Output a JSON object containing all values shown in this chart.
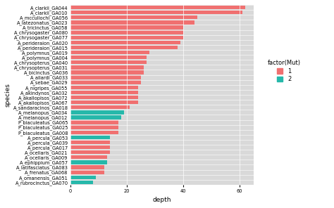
{
  "species": [
    "A_clarkii_GA044",
    "A_clarkii_GA010",
    "A_mccullochi_GA056",
    "A_latezonatus_GA023",
    "A_tricinctus_GA058",
    "A_chrysogaster_GA080",
    "A_chrysogaster_GA077",
    "A_perideraion_GA020",
    "A_perideraion_GA015",
    "A_polymnus_GA019",
    "A_polymnus_GA004",
    "A_chrysopterus_GA040",
    "A_chrysopterus_GA031",
    "A_bicinctus_GA036",
    "A_allardi_GA033",
    "A_sebae_GA029",
    "A_nigripes_GA055",
    "A_akindynos_GA032",
    "A_akallopisos_GA072",
    "A_akallopisos_GA067",
    "A_sandaracinos_GA018",
    "A_melanopus_GA034",
    "A_melanopus_GA012",
    "P_biaculeatus_GA065",
    "P_biaculeatus_GA025",
    "P_biaculeatus_GA008",
    "A_percula_GA053",
    "A_percula_GA039",
    "A_percula_GA017",
    "A_ocellaris_GA021",
    "A_ocellaris_GA009",
    "A_ephippium_GA057",
    "A_latifasciatus_GA083",
    "A_frenatus_GA068",
    "A_omanensis_GA051",
    "A_rubrocinctus_GA070"
  ],
  "depth": [
    62,
    61,
    45,
    44,
    40,
    40,
    40,
    39,
    38,
    28,
    27,
    27,
    26,
    26,
    25,
    25,
    24,
    24,
    24,
    24,
    21,
    19,
    18,
    17,
    17,
    17,
    14,
    14,
    14,
    14,
    13,
    13,
    12,
    12,
    9,
    8
  ],
  "color_factor": [
    1,
    1,
    1,
    1,
    1,
    1,
    1,
    1,
    1,
    1,
    1,
    1,
    1,
    1,
    1,
    1,
    1,
    1,
    1,
    1,
    1,
    2,
    2,
    1,
    1,
    1,
    2,
    1,
    1,
    1,
    1,
    2,
    1,
    1,
    2,
    2
  ],
  "color_1": "#F07070",
  "color_2": "#26B8AA",
  "panel_bg": "#D9D9D9",
  "xlabel": "depth",
  "ylabel": "species",
  "xlim": [
    0,
    65
  ],
  "xticks": [
    0,
    20,
    40,
    60
  ],
  "legend_title": "factor(Mut)",
  "tick_fontsize": 4.8,
  "label_fontsize": 6.5,
  "legend_fontsize": 6.0,
  "bar_height": 0.75
}
